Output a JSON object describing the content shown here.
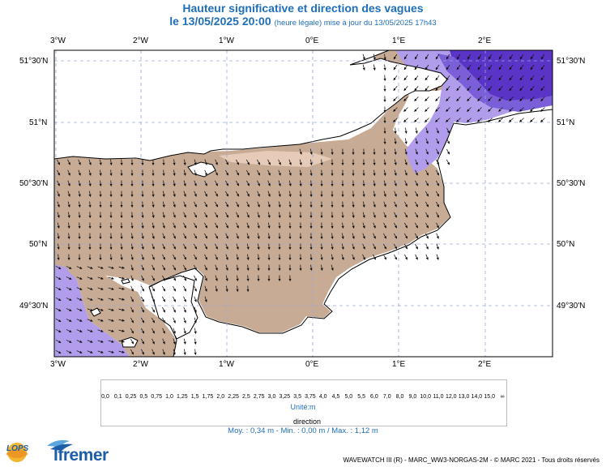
{
  "title_line1": "Hauteur significative et direction des vagues",
  "title_line2_main": "le 13/05/2025 20:00",
  "title_line2_small": "(heure légale) mise à jour du 13/05/2025 17h43",
  "lon_labels": [
    "3°W",
    "2°W",
    "1°W",
    "0°E",
    "1°E",
    "2°E"
  ],
  "lat_labels": [
    "51°30'N",
    "51°N",
    "50°30'N",
    "50°N",
    "49°30'N"
  ],
  "colorbar": {
    "labels": [
      "0,0",
      "0,1",
      "0,25",
      "0,5",
      "0,75",
      "1,0",
      "1,25",
      "1,5",
      "1,75",
      "2,0",
      "2,25",
      "2,5",
      "2,75",
      "3,0",
      "3,25",
      "3,5",
      "3,75",
      "4,0",
      "4,5",
      "5,0",
      "5,5",
      "6,0",
      "7,0",
      "8,0",
      "9,0",
      "10,0",
      "11,0",
      "12,0",
      "13,0",
      "14,0",
      "15,0",
      "∞"
    ],
    "colors": [
      "#e9d2c0",
      "#d9c1ac",
      "#c9ae99",
      "#c6a3c8",
      "#9d83de",
      "#7b5fd8",
      "#5a39b4",
      "#8cf2f2",
      "#5ad2f0",
      "#3aa6e9",
      "#2270dc",
      "#1640c9",
      "#0f1ea3",
      "#e8f8aa",
      "#c6f57d",
      "#a1ef5a",
      "#6ee84a",
      "#33dd55",
      "#22c96a",
      "#1cb43c",
      "#f6f55a",
      "#f6d637",
      "#f4ae2a",
      "#f28a2d",
      "#f7c3c5",
      "#ef8a86",
      "#e8494a",
      "#b77d4f",
      "#8b5a34",
      "#6b2f18",
      "#c9001f",
      "#9a001a",
      "#740012",
      "#e000d8",
      "#a60074"
    ],
    "unit_label": "Unité:m"
  },
  "direction_label": "direction",
  "stats": "Moy. : 0,34 m  -  Min. : 0,00 m / Max. : 1,12 m",
  "footer": "WAVEWATCH III (R) - MARC_WW3-NORGAS-2M - © MARC 2021 - Tous droits réservés",
  "logos": {
    "left": "LOPS",
    "right": "Ifremer"
  },
  "colors": {
    "title": "#1f6fb8",
    "sea_calm": "#c8ab94",
    "sea_moderate": "#b29dec",
    "sea_high": "#5a34c6",
    "land": "#ffffff"
  }
}
